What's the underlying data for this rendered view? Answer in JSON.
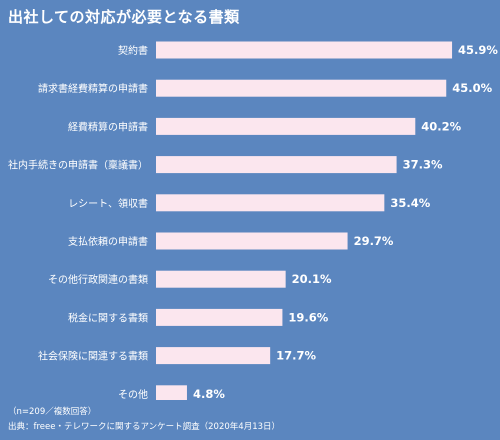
{
  "chart_data": {
    "type": "bar",
    "orientation": "horizontal",
    "title": "出社しての対応が必要となる書類",
    "categories": [
      "契約書",
      "請求書経費精算の申請書",
      "経費精算の申請書",
      "社内手続きの申請書（稟議書）",
      "レシート、領収書",
      "支払依頼の申請書",
      "その他行政関連の書類",
      "税金に関する書類",
      "社会保険に関連する書類",
      "その他"
    ],
    "values": [
      45.9,
      45.0,
      40.2,
      37.3,
      35.4,
      29.7,
      20.1,
      19.6,
      17.7,
      4.8
    ],
    "value_labels": [
      "45.9%",
      "45.0%",
      "40.2%",
      "37.3%",
      "35.4%",
      "29.7%",
      "20.1%",
      "19.6%",
      "17.7%",
      "4.8%"
    ],
    "xlim": [
      0,
      50
    ],
    "grid": false,
    "bar_color": "#fbe6ee",
    "background_color": "#5b86bf",
    "text_color": "#ffffff"
  },
  "note": "（n=209／複数回答）",
  "source": "出典：freee・テレワークに関するアンケート調査（2020年4月13日）"
}
